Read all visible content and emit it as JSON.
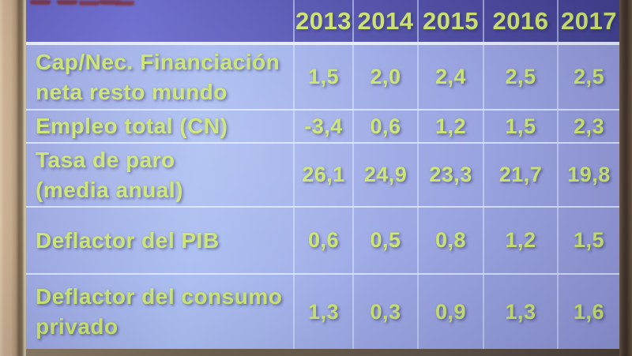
{
  "slide": {
    "table": {
      "header": {
        "years": [
          "2013",
          "2014",
          "2015",
          "2016",
          "2017"
        ]
      },
      "rows": [
        {
          "label": "Cap/Nec. Financiación\nneta resto mundo",
          "values": [
            "1,5",
            "2,0",
            "2,4",
            "2,5",
            "2,5"
          ]
        },
        {
          "label": "Empleo total (CN)",
          "values": [
            "-3,4",
            "0,6",
            "1,2",
            "1,5",
            "2,3"
          ]
        },
        {
          "label": "Tasa de paro\n(media anual)",
          "values": [
            "26,1",
            "24,9",
            "23,3",
            "21,7",
            "19,8"
          ]
        },
        {
          "label": "Deflactor del PIB",
          "values": [
            "0,6",
            "0,5",
            "0,8",
            "1,2",
            "1,5"
          ]
        },
        {
          "label": "Deflactor del consumo\nprivado",
          "values": [
            "1,3",
            "0,3",
            "0,9",
            "1,3",
            "1,6"
          ]
        }
      ]
    }
  },
  "chart_data": {
    "type": "table",
    "title": "",
    "categories": [
      "2013",
      "2014",
      "2015",
      "2016",
      "2017"
    ],
    "series": [
      {
        "name": "Cap/Nec. Financiación neta resto mundo",
        "values": [
          1.5,
          2.0,
          2.4,
          2.5,
          2.5
        ]
      },
      {
        "name": "Empleo total (CN)",
        "values": [
          -3.4,
          0.6,
          1.2,
          1.5,
          2.3
        ]
      },
      {
        "name": "Tasa de paro (media anual)",
        "values": [
          26.1,
          24.9,
          23.3,
          21.7,
          19.8
        ]
      },
      {
        "name": "Deflactor del PIB",
        "values": [
          0.6,
          0.5,
          0.8,
          1.2,
          1.5
        ]
      },
      {
        "name": "Deflactor del consumo privado",
        "values": [
          1.3,
          0.3,
          0.9,
          1.3,
          1.6
        ]
      }
    ]
  },
  "colors": {
    "header_blue": "#5150ac",
    "body_blue": "#a2aeea",
    "text_green": "#c9e36e",
    "separator": "#e3ebfd",
    "wall_tan": "#c8ad8e",
    "frame_brown": "#46362a"
  }
}
